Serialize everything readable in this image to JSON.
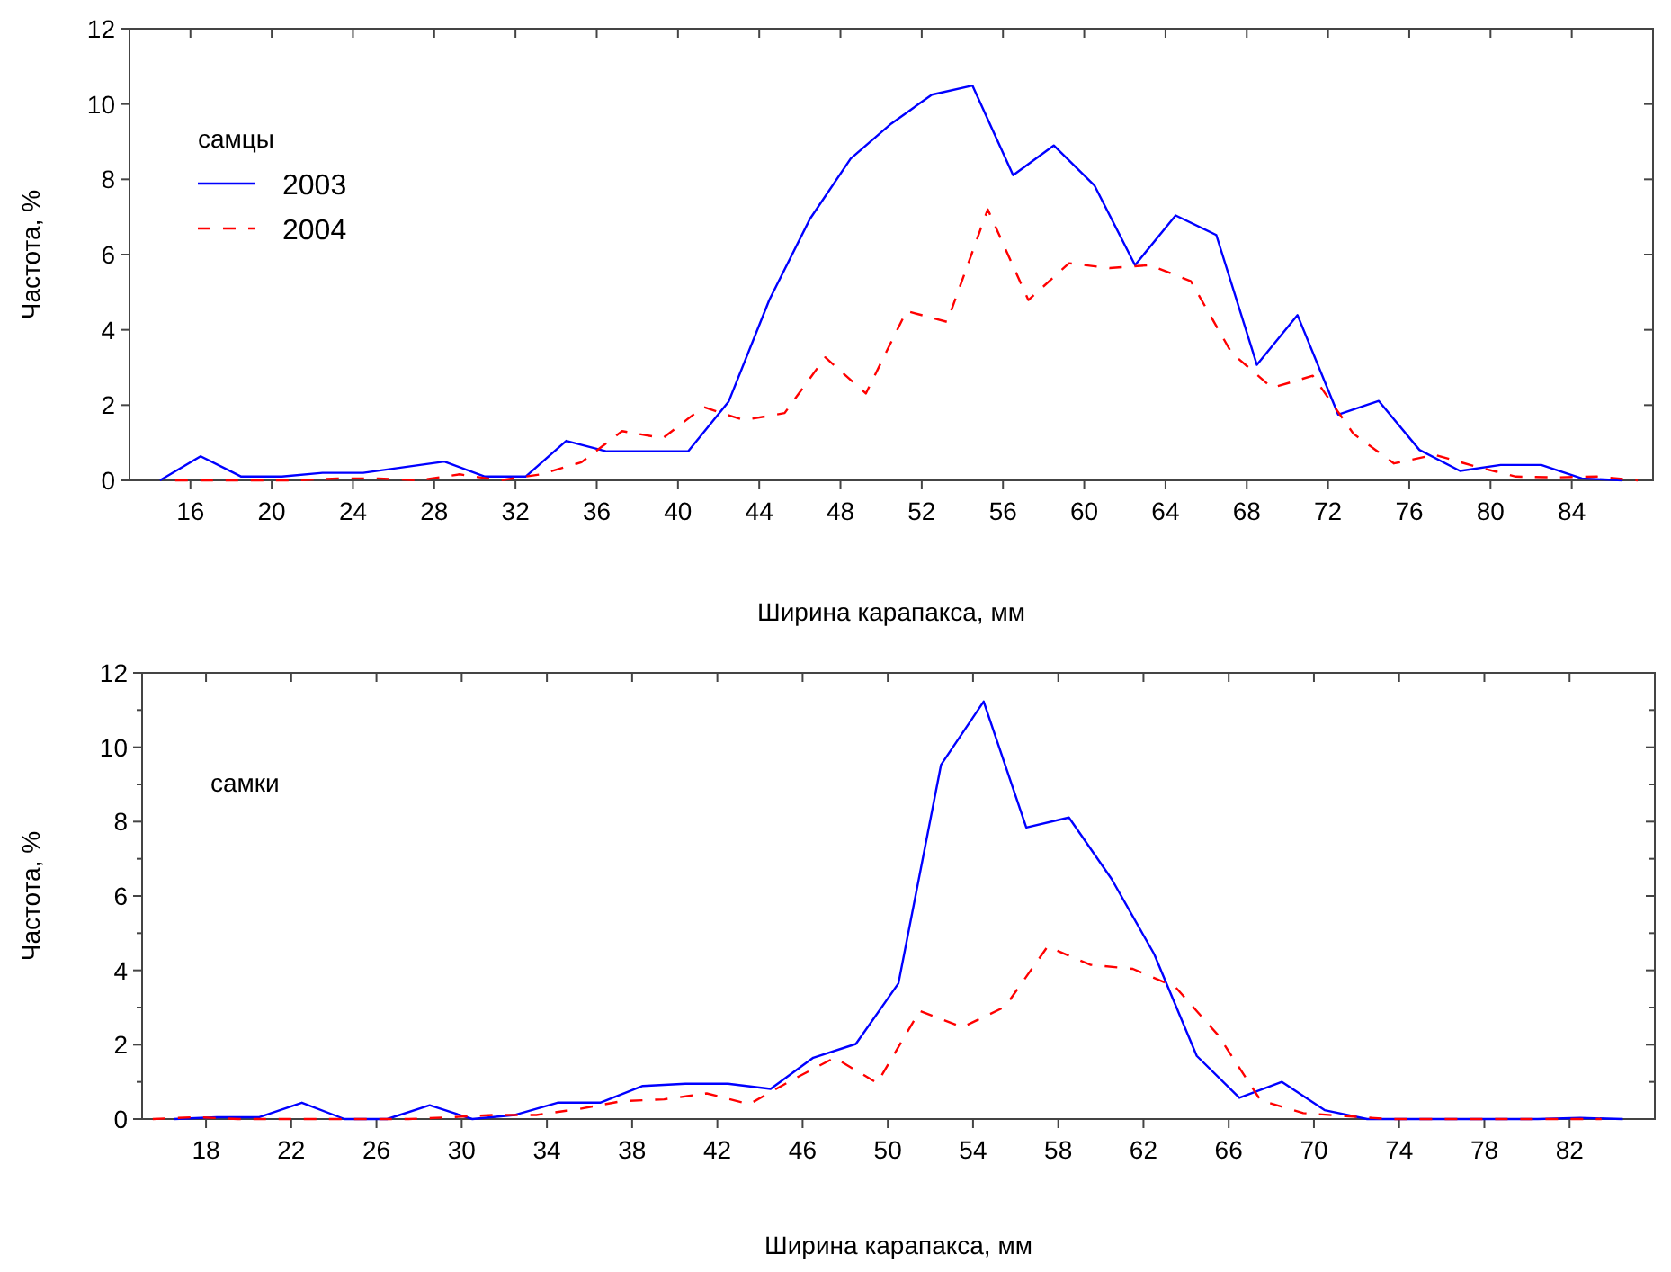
{
  "chart_data": [
    {
      "type": "line",
      "xlabel": "Ширина карапакса, мм",
      "ylabel": "Частота, %",
      "annotations": [
        "самцы"
      ],
      "legend": "top left",
      "grid": false,
      "xlim": [
        13,
        88
      ],
      "xticks": [
        16,
        20,
        24,
        28,
        32,
        36,
        40,
        44,
        48,
        52,
        56,
        60,
        64,
        68,
        72,
        76,
        80,
        84
      ],
      "ylim": [
        0,
        12
      ],
      "yticks": [
        0,
        2,
        4,
        6,
        8,
        10,
        12
      ],
      "series": [
        {
          "name": "2003",
          "color": "#0000ff",
          "line_style": "solid",
          "x": [
            14.5,
            16.5,
            18.5,
            20.5,
            22.5,
            24.5,
            26.5,
            28.5,
            30.5,
            32.5,
            34.5,
            36.5,
            38.5,
            40.5,
            42.5,
            44.5,
            46.5,
            48.5,
            50.5,
            52.5,
            54.5,
            56.5,
            58.5,
            60.5,
            62.5,
            64.5,
            66.5,
            68.5,
            70.5,
            72.5,
            74.5,
            76.5,
            78.5,
            80.5,
            82.5,
            84.5,
            86.5
          ],
          "values": [
            0,
            0.64,
            0.1,
            0.1,
            0.2,
            0.2,
            0.35,
            0.5,
            0.1,
            0.1,
            1.05,
            0.77,
            0.77,
            0.77,
            2.1,
            4.8,
            6.95,
            8.55,
            9.48,
            10.25,
            10.49,
            8.11,
            8.9,
            7.84,
            5.72,
            7.04,
            6.52,
            3.07,
            4.39,
            1.75,
            2.11,
            0.81,
            0.25,
            0.41,
            0.41,
            0.05,
            0
          ]
        },
        {
          "name": "2004",
          "color": "#ff0000",
          "line_style": "dashed",
          "x": [
            15.25,
            17.25,
            19.25,
            21.25,
            23.25,
            25.25,
            27.25,
            29.25,
            31.25,
            33.25,
            35.25,
            37.25,
            39.25,
            41.25,
            43.25,
            45.25,
            47.25,
            49.25,
            51.25,
            53.25,
            55.25,
            57.25,
            59.25,
            61.25,
            63.25,
            65.25,
            67.25,
            69.25,
            71.25,
            73.25,
            75.25,
            77.25,
            79.25,
            81.25,
            83.25,
            85.25,
            87.25
          ],
          "values": [
            0,
            0,
            0,
            0,
            0.05,
            0.05,
            0,
            0.16,
            0,
            0.16,
            0.48,
            1.31,
            1.12,
            1.95,
            1.6,
            1.79,
            3.27,
            2.31,
            4.5,
            4.21,
            7.2,
            4.79,
            5.77,
            5.64,
            5.72,
            5.29,
            3.39,
            2.46,
            2.78,
            1.24,
            0.45,
            0.68,
            0.37,
            0.1,
            0.08,
            0.1,
            0
          ]
        }
      ]
    },
    {
      "type": "line",
      "xlabel": "Ширина карапакса, мм",
      "ylabel": "Частота, %",
      "annotations": [
        "самки"
      ],
      "grid": false,
      "xlim": [
        15,
        86
      ],
      "xticks": [
        18,
        22,
        26,
        30,
        34,
        38,
        42,
        46,
        50,
        54,
        58,
        62,
        66,
        70,
        74,
        78,
        82
      ],
      "ylim": [
        0,
        12
      ],
      "yticks": [
        0,
        {
          "value": 1,
          "label": null
        },
        2,
        {
          "value": 3,
          "label": null
        },
        4,
        {
          "value": 5,
          "label": null
        },
        6,
        {
          "value": 7,
          "label": null
        },
        8,
        {
          "value": 9,
          "label": null
        },
        10,
        {
          "value": 11,
          "label": null
        },
        12
      ],
      "series": [
        {
          "color": "#0000ff",
          "line_style": "solid",
          "x": [
            16.5,
            18.5,
            20.5,
            22.5,
            24.5,
            26.5,
            28.5,
            30.5,
            32.5,
            34.5,
            36.5,
            38.5,
            40.5,
            42.5,
            44.5,
            46.5,
            48.5,
            50.5,
            52.5,
            54.5,
            56.5,
            58.5,
            60.5,
            62.5,
            64.5,
            66.5,
            68.5,
            70.5,
            72.5,
            74.5,
            76.5,
            78.5,
            80.5,
            82.5,
            84.5
          ],
          "values": [
            0,
            0.05,
            0.05,
            0.44,
            0,
            0,
            0.37,
            0,
            0.11,
            0.44,
            0.44,
            0.89,
            0.95,
            0.95,
            0.81,
            1.65,
            2.02,
            3.65,
            9.53,
            11.23,
            7.84,
            8.11,
            6.46,
            4.44,
            1.7,
            0.57,
            1.0,
            0.24,
            0,
            0,
            0,
            0,
            0,
            0.03,
            0
          ]
        },
        {
          "color": "#ff0000",
          "line_style": "dashed",
          "x": [
            15.5,
            17.5,
            19.5,
            21.5,
            23.5,
            25.5,
            27.5,
            29.5,
            31.5,
            33.5,
            35.5,
            37.5,
            39.5,
            41.5,
            43.5,
            45.5,
            47.5,
            49.5,
            51.5,
            53.5,
            55.5,
            57.5,
            59.5,
            61.5,
            63.5,
            65.5,
            67.5,
            69.5,
            71.5,
            73.5,
            75.5,
            77.5,
            79.5,
            81.5,
            83.5
          ],
          "values": [
            0,
            0.05,
            0,
            0,
            0,
            0,
            0,
            0.05,
            0.11,
            0.11,
            0.27,
            0.48,
            0.53,
            0.69,
            0.4,
            1.05,
            1.65,
            0.97,
            2.91,
            2.47,
            3.02,
            4.64,
            4.15,
            4.04,
            3.55,
            2.26,
            0.5,
            0.16,
            0.08,
            0,
            0,
            0,
            0,
            0,
            0
          ]
        }
      ]
    }
  ]
}
